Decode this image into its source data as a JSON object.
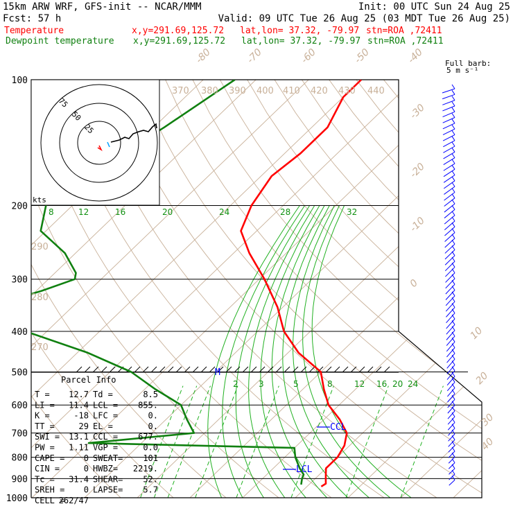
{
  "header": {
    "model": "15km ARW WRF, GFS-init  -- NCAR/MMM",
    "init": "Init: 00 UTC Sun 24 Aug 25",
    "fcst": "Fcst:   57 h",
    "valid": "Valid: 09 UTC Tue 26 Aug 25 (03 MDT Tue 26 Aug 25)",
    "temp_line": {
      "name": "Temperature",
      "xy": "x,y=291.69,125.72",
      "latlon": "lat,lon= 37.32, -79.97",
      "stn": "stn=ROA ,72411"
    },
    "dewp_line": {
      "name": "Dewpoint temperature",
      "xy": "x,y=291.69,125.72",
      "latlon": "lat,lon= 37.32, -79.97",
      "stn": "stn=ROA ,72411"
    },
    "barb_key": [
      "Full barb:",
      "5 m s⁻¹"
    ]
  },
  "colors": {
    "temperature": "#ff0000",
    "dewpoint": "#108010",
    "isotherm": "#c8b098",
    "mixing_ratio": "#20b020",
    "wind": "#0000ff"
  },
  "pressure_labels": [
    "100",
    "200",
    "300",
    "400",
    "500",
    "600",
    "700",
    "800",
    "900",
    "1000"
  ],
  "theta_labels": [
    "370",
    "380",
    "390",
    "400",
    "410",
    "420",
    "430",
    "440",
    "290",
    "280",
    "270"
  ],
  "temp_labels": [
    "-80",
    "-70",
    "-60",
    "-50",
    "-40",
    "-30",
    "-20",
    "-10",
    "0",
    "10",
    "20",
    "30",
    "40"
  ],
  "mixing_labels_upper": [
    "8",
    "12",
    "16",
    "20",
    "24",
    "28",
    "32"
  ],
  "mixing_labels_lower": [
    "2",
    "3",
    "5",
    "8",
    "12",
    "16",
    "20",
    "24"
  ],
  "hodograph": {
    "rings": [
      "75",
      "50",
      "25"
    ],
    "units": "kts"
  },
  "markers": {
    "ccl": "CCL",
    "lcl": "LCL",
    "m": "M"
  },
  "parcel_info": {
    "title": "Parcel Info",
    "rows": [
      [
        "T   =",
        "12.7",
        "Td =",
        "8.5"
      ],
      [
        "LI  =",
        "11.4",
        "LCL =",
        "855."
      ],
      [
        "K   =",
        "-18",
        "LFC =",
        "0."
      ],
      [
        "TT  =",
        "29",
        "EL  =",
        "0."
      ],
      [
        "SWI =",
        "13.1",
        "CCL =",
        "677."
      ],
      [
        "PW  =",
        "1.11",
        "VGP =",
        "0.0"
      ],
      [
        "CAPE =",
        "0",
        "SWEAT=",
        "101"
      ],
      [
        "CIN =",
        "0",
        "HWBZ=",
        "2219."
      ],
      [
        "Tc  =",
        "31.4",
        "SHEAR=",
        "52."
      ],
      [
        "SREH =",
        "0",
        "LAPSE=",
        "5.7"
      ],
      [
        "CELL =",
        "262/47",
        "",
        ""
      ]
    ]
  },
  "chart_data": {
    "type": "line",
    "title": "15km ARW WRF, GFS-init  -- NCAR/MMM",
    "y_axis": "pressure (hPa), log scale",
    "ylim": [
      1000,
      100
    ],
    "x_axis": "temperature (°C), skewed",
    "series": [
      {
        "name": "Temperature",
        "points": [
          [
            100,
            -60
          ],
          [
            110,
            -60
          ],
          [
            130,
            -57
          ],
          [
            150,
            -57
          ],
          [
            170,
            -58
          ],
          [
            200,
            -56
          ],
          [
            230,
            -53
          ],
          [
            260,
            -47
          ],
          [
            300,
            -39
          ],
          [
            350,
            -31
          ],
          [
            400,
            -25
          ],
          [
            450,
            -18
          ],
          [
            500,
            -10
          ],
          [
            550,
            -6
          ],
          [
            600,
            -2
          ],
          [
            650,
            3
          ],
          [
            700,
            7
          ],
          [
            750,
            9
          ],
          [
            800,
            10
          ],
          [
            850,
            10
          ],
          [
            875,
            11
          ],
          [
            900,
            12
          ],
          [
            925,
            13
          ],
          [
            940,
            12.7
          ]
        ]
      },
      {
        "name": "Dewpoint temperature",
        "points": [
          [
            100,
            -84
          ],
          [
            130,
            -88
          ],
          [
            170,
            -93
          ],
          [
            200,
            -95
          ],
          [
            230,
            -91
          ],
          [
            260,
            -82
          ],
          [
            290,
            -76
          ],
          [
            300,
            -75
          ],
          [
            320,
            -79
          ],
          [
            350,
            -86
          ],
          [
            370,
            -80
          ],
          [
            400,
            -74
          ],
          [
            450,
            -58
          ],
          [
            500,
            -46
          ],
          [
            550,
            -38
          ],
          [
            600,
            -30
          ],
          [
            650,
            -26
          ],
          [
            700,
            -22
          ],
          [
            740,
            -40
          ],
          [
            760,
            0
          ],
          [
            800,
            2
          ],
          [
            850,
            5
          ],
          [
            880,
            7
          ],
          [
            900,
            7.5
          ],
          [
            930,
            8.5
          ]
        ]
      }
    ],
    "grid": true
  }
}
